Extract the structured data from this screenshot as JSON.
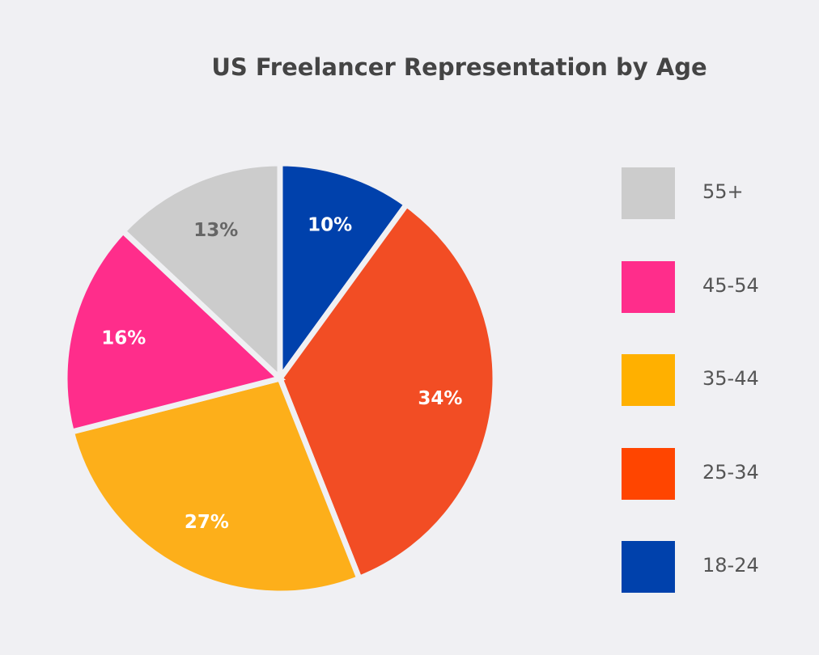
{
  "chart_data": {
    "type": "pie",
    "title": "US Freelancer Representation by Age",
    "slices": [
      {
        "label": "18-24",
        "value": 10,
        "display": "10%",
        "color": "#0041ac",
        "text_color": "#ffffff"
      },
      {
        "label": "25-34",
        "value": 34,
        "display": "34%",
        "color": "#f24d24",
        "text_color": "#ffffff"
      },
      {
        "label": "35-44",
        "value": 27,
        "display": "27%",
        "color": "#fdaf1a",
        "text_color": "#ffffff"
      },
      {
        "label": "45-54",
        "value": 16,
        "display": "16%",
        "color": "#ff2d8b",
        "text_color": "#ffffff"
      },
      {
        "label": "55+",
        "value": 13,
        "display": "13%",
        "color": "#cccccc",
        "text_color": "#666666"
      }
    ],
    "legend": {
      "placement": "right",
      "items": [
        {
          "label": "55+",
          "color": "#cccccc"
        },
        {
          "label": "45-54",
          "color": "#ff2d8b"
        },
        {
          "label": "35-44",
          "color": "#ffb000"
        },
        {
          "label": "25-34",
          "color": "#ff4500"
        },
        {
          "label": "18-24",
          "color": "#0041ac"
        }
      ]
    },
    "background": "#f0f0f3"
  }
}
